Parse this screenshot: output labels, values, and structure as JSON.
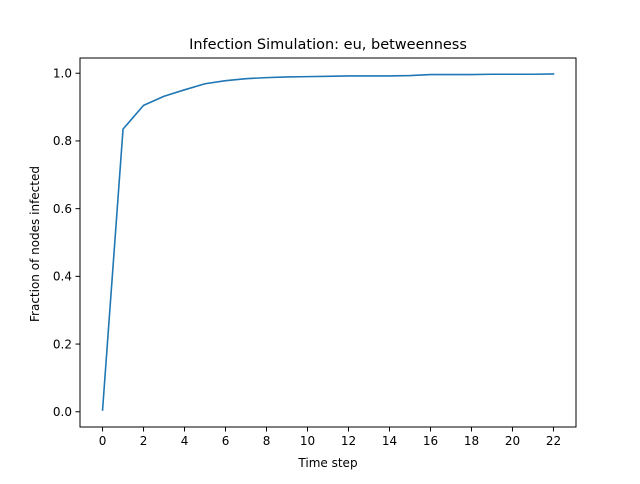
{
  "chart_data": {
    "type": "line",
    "title": "Infection Simulation: eu, betweenness",
    "xlabel": "Time step",
    "ylabel": "Fraction of nodes infected",
    "xlim": [
      -1.1,
      23.1
    ],
    "ylim": [
      -0.045,
      1.045
    ],
    "xticks": [
      0,
      2,
      4,
      6,
      8,
      10,
      12,
      14,
      16,
      18,
      20,
      22
    ],
    "yticks": [
      0.0,
      0.2,
      0.4,
      0.6,
      0.8,
      1.0
    ],
    "ytick_labels": [
      "0.0",
      "0.2",
      "0.4",
      "0.6",
      "0.8",
      "1.0"
    ],
    "grid": false,
    "series": [
      {
        "color": "#1f77b4",
        "x": [
          0,
          1,
          2,
          3,
          4,
          5,
          6,
          7,
          8,
          9,
          10,
          11,
          12,
          13,
          14,
          15,
          16,
          17,
          18,
          19,
          20,
          21,
          22
        ],
        "y": [
          0.005,
          0.835,
          0.905,
          0.932,
          0.951,
          0.969,
          0.978,
          0.984,
          0.987,
          0.989,
          0.99,
          0.991,
          0.992,
          0.992,
          0.992,
          0.993,
          0.996,
          0.996,
          0.996,
          0.997,
          0.997,
          0.997,
          0.998
        ]
      }
    ]
  }
}
